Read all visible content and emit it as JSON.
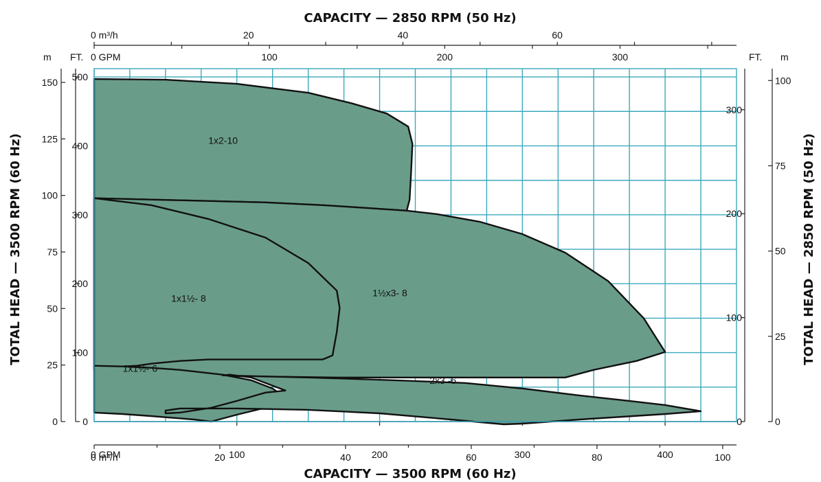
{
  "chart_data": {
    "type": "area",
    "title_top": "CAPACITY — 2850 RPM (50 Hz)",
    "title_bottom": "CAPACITY — 3500 RPM (60 Hz)",
    "ylabel_left": "TOTAL HEAD — 3500 RPM (60 Hz)",
    "ylabel_right": "TOTAL HEAD — 2850 RPM (50 Hz)",
    "units": {
      "top_m3h": "0  m³/h",
      "top_gpm": "0  GPM",
      "left_m": "m",
      "left_ft": "FT.",
      "right_ft": "FT.",
      "right_m": "m",
      "bottom_gpm": "0  GPM",
      "bottom_m3h": "0  m³/h"
    },
    "primary_axes": {
      "x_unit": "GPM at 3500 RPM",
      "xlim": [
        0,
        450
      ],
      "y_unit": "FT. at 3500 RPM",
      "ylim": [
        0,
        512
      ]
    },
    "axes": {
      "bottom_gpm": {
        "ticks": [
          100,
          200,
          300,
          400
        ],
        "labels": [
          "100",
          "200",
          "300",
          "400"
        ]
      },
      "bottom_m3h": {
        "ticks": [
          20,
          40,
          60,
          80,
          100
        ],
        "labels": [
          "20",
          "40",
          "60",
          "80",
          "100"
        ]
      },
      "top_gpm": {
        "ticks": [
          100,
          200,
          300
        ],
        "labels": [
          "100",
          "200",
          "300"
        ]
      },
      "top_m3h": {
        "ticks": [
          20,
          40,
          60
        ],
        "labels": [
          "20",
          "40",
          "60"
        ]
      },
      "left_ft": {
        "ticks": [
          0,
          100,
          200,
          300,
          400,
          500
        ],
        "labels": [
          "0",
          "100",
          "200",
          "300",
          "400",
          "500"
        ]
      },
      "left_m": {
        "ticks": [
          0,
          25,
          50,
          75,
          100,
          125,
          150
        ],
        "labels": [
          "0",
          "25",
          "50",
          "75",
          "100",
          "125",
          "150"
        ]
      },
      "right_ft": {
        "ticks": [
          0,
          100,
          200,
          300
        ],
        "labels": [
          "0",
          "100",
          "200",
          "300"
        ]
      },
      "right_m": {
        "ticks": [
          0,
          25,
          50,
          75,
          100
        ],
        "labels": [
          "0",
          "25",
          "50",
          "75",
          "100"
        ]
      }
    },
    "grid": true,
    "series": [
      {
        "name": "1x2-10",
        "label_at": [
          80,
          403
        ],
        "points": [
          [
            0,
            497
          ],
          [
            50,
            496
          ],
          [
            100,
            490
          ],
          [
            150,
            477
          ],
          [
            180,
            462
          ],
          [
            205,
            447
          ],
          [
            220,
            428
          ],
          [
            223,
            403
          ],
          [
            222,
            360
          ],
          [
            221,
            322
          ],
          [
            219,
            306
          ],
          [
            190,
            310
          ],
          [
            160,
            314
          ],
          [
            120,
            318
          ],
          [
            60,
            321
          ],
          [
            0,
            324
          ]
        ]
      },
      {
        "name": "1½x3- 8",
        "label_at": [
          195,
          182
        ],
        "points": [
          [
            0,
            324
          ],
          [
            60,
            321
          ],
          [
            120,
            318
          ],
          [
            160,
            314
          ],
          [
            190,
            310
          ],
          [
            219,
            306
          ],
          [
            240,
            301
          ],
          [
            270,
            290
          ],
          [
            300,
            272
          ],
          [
            330,
            245
          ],
          [
            360,
            204
          ],
          [
            385,
            150
          ],
          [
            400,
            101
          ],
          [
            380,
            88
          ],
          [
            350,
            75
          ],
          [
            330,
            64
          ],
          [
            290,
            64
          ],
          [
            230,
            64
          ],
          [
            170,
            64
          ],
          [
            130,
            65
          ],
          [
            110,
            65
          ],
          [
            100,
            66
          ],
          [
            90,
            66
          ],
          [
            85,
            66
          ],
          [
            84,
            65
          ],
          [
            80,
            67
          ],
          [
            70,
            69
          ],
          [
            60,
            70
          ],
          [
            57,
            70
          ],
          [
            53,
            65
          ],
          [
            51,
            62
          ],
          [
            53,
            52
          ],
          [
            58,
            47
          ],
          [
            55,
            54
          ],
          [
            53,
            60
          ],
          [
            51,
            62
          ],
          [
            0,
            75
          ]
        ]
      },
      {
        "name": "1x1½- 8",
        "label_at": [
          54,
          174
        ],
        "points": [
          [
            0,
            324
          ],
          [
            40,
            314
          ],
          [
            80,
            294
          ],
          [
            120,
            267
          ],
          [
            150,
            230
          ],
          [
            170,
            190
          ],
          [
            172,
            165
          ],
          [
            170,
            130
          ],
          [
            167,
            96
          ],
          [
            160,
            90
          ],
          [
            140,
            90
          ],
          [
            120,
            90
          ],
          [
            100,
            90
          ],
          [
            80,
            90
          ],
          [
            60,
            88
          ],
          [
            50,
            86
          ],
          [
            40,
            84
          ],
          [
            30,
            81
          ],
          [
            20,
            80
          ],
          [
            0,
            80
          ]
        ]
      },
      {
        "name": "1x1½- 6",
        "label_at": [
          20,
          72
        ],
        "points": [
          [
            0,
            81
          ],
          [
            20,
            80
          ],
          [
            40,
            78
          ],
          [
            60,
            75
          ],
          [
            90,
            68
          ],
          [
            110,
            60
          ],
          [
            125,
            48
          ],
          [
            134,
            35
          ],
          [
            120,
            20
          ],
          [
            100,
            10
          ],
          [
            82,
            0
          ],
          [
            70,
            3
          ],
          [
            40,
            8
          ],
          [
            20,
            11
          ],
          [
            0,
            13
          ]
        ]
      },
      {
        "name": "2x3 -6",
        "label_at": [
          235,
          55
        ],
        "points": [
          [
            90,
            67
          ],
          [
            150,
            64
          ],
          [
            210,
            60
          ],
          [
            260,
            56
          ],
          [
            300,
            48
          ],
          [
            340,
            38
          ],
          [
            375,
            30
          ],
          [
            400,
            24
          ],
          [
            425,
            15
          ],
          [
            400,
            11
          ],
          [
            370,
            7
          ],
          [
            340,
            3
          ],
          [
            300,
            -3
          ],
          [
            287,
            -4
          ],
          [
            250,
            3
          ],
          [
            200,
            12
          ],
          [
            150,
            17
          ],
          [
            100,
            19
          ],
          [
            80,
            19
          ],
          [
            60,
            19
          ],
          [
            50,
            16
          ],
          [
            50,
            12
          ],
          [
            60,
            13
          ],
          [
            82,
            20
          ],
          [
            100,
            30
          ],
          [
            120,
            42
          ],
          [
            134,
            45
          ],
          [
            120,
            56
          ],
          [
            110,
            64
          ],
          [
            95,
            68
          ]
        ]
      }
    ]
  }
}
